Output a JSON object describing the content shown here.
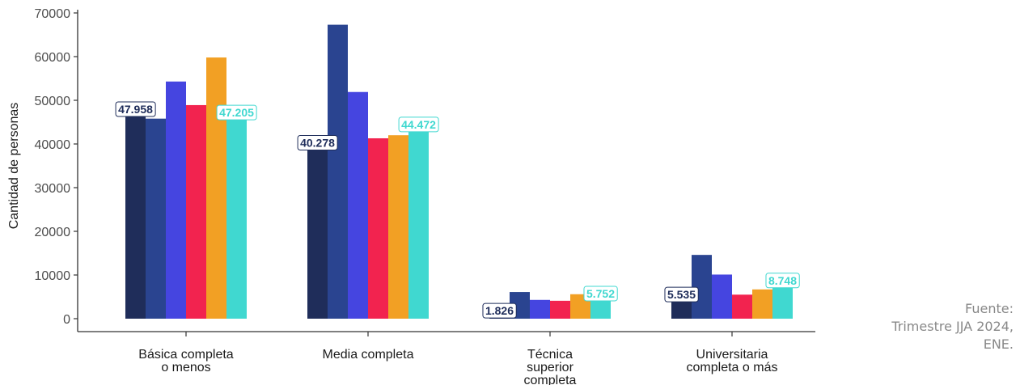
{
  "chart_data": {
    "type": "bar",
    "ylabel": "Cantidad de personas",
    "xlabel": "",
    "ylim": [
      0,
      70000
    ],
    "yticks": [
      0,
      10000,
      20000,
      30000,
      40000,
      50000,
      60000,
      70000
    ],
    "grid": false,
    "categories": [
      [
        "Básica completa",
        "o menos"
      ],
      [
        "Media completa"
      ],
      [
        "Técnica",
        "superior",
        "completa"
      ],
      [
        "Universitaria",
        "completa o más"
      ]
    ],
    "series": [
      {
        "color": "#1f2d5a",
        "values": [
          47958,
          40278,
          1826,
          5535
        ]
      },
      {
        "color": "#2a4490",
        "values": [
          45800,
          67300,
          6100,
          14600
        ]
      },
      {
        "color": "#4545e0",
        "values": [
          54300,
          51900,
          4300,
          10100
        ]
      },
      {
        "color": "#f2234f",
        "values": [
          48900,
          41300,
          4100,
          5500
        ]
      },
      {
        "color": "#f2a024",
        "values": [
          59800,
          42000,
          5600,
          6700
        ]
      },
      {
        "color": "#40d8d0",
        "values": [
          47205,
          44472,
          5752,
          8748
        ]
      }
    ],
    "labels": [
      {
        "series": 0,
        "category": 0,
        "text": "47.958",
        "color": "#1f2d5a"
      },
      {
        "series": 0,
        "category": 1,
        "text": "40.278",
        "color": "#1f2d5a"
      },
      {
        "series": 0,
        "category": 2,
        "text": "1.826",
        "color": "#1f2d5a"
      },
      {
        "series": 0,
        "category": 3,
        "text": "5.535",
        "color": "#1f2d5a"
      },
      {
        "series": 5,
        "category": 0,
        "text": "47.205",
        "color": "#40d8d0"
      },
      {
        "series": 5,
        "category": 1,
        "text": "44.472",
        "color": "#40d8d0"
      },
      {
        "series": 5,
        "category": 2,
        "text": "5.752",
        "color": "#40d8d0"
      },
      {
        "series": 5,
        "category": 3,
        "text": "8.748",
        "color": "#40d8d0"
      }
    ]
  },
  "source": {
    "line1": "Fuente:",
    "line2": "Trimestre JJA 2024,",
    "line3": "ENE."
  }
}
